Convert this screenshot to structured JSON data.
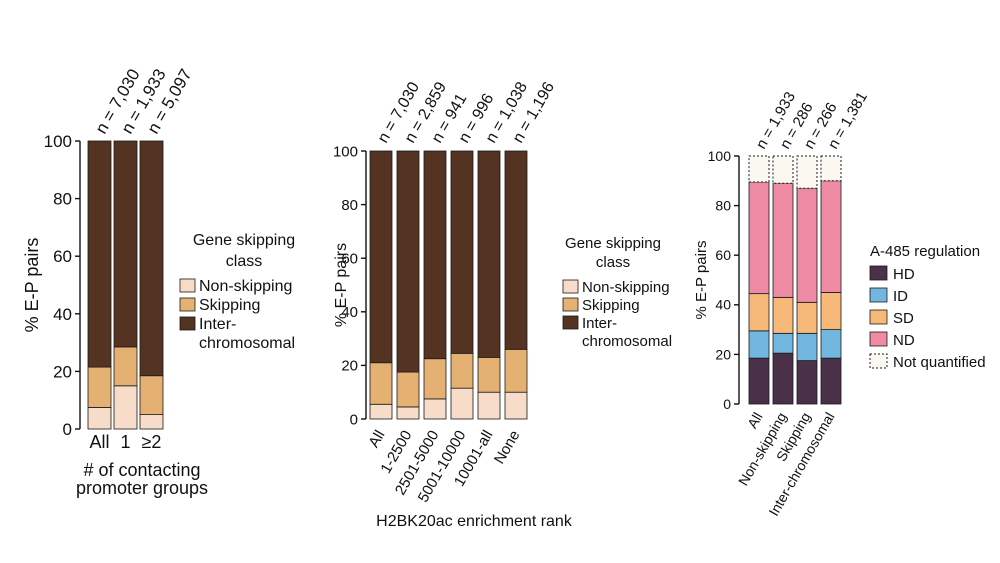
{
  "colors": {
    "non_skipping": "#f7ddc9",
    "skipping": "#e4b172",
    "inter": "#553322",
    "HD": "#4b3049",
    "ID": "#71b7e0",
    "SD": "#f6b97a",
    "ND": "#ee8aa3",
    "not_quantified": "#fbf8f1"
  },
  "chart_data": [
    {
      "type": "bar",
      "stacked": true,
      "ylabel": "% E-P pairs",
      "xlabel": "# of contacting promoter groups",
      "ylim": [
        0,
        100
      ],
      "yticks": [
        "0",
        "20",
        "40",
        "60",
        "80",
        "100"
      ],
      "categories": [
        "All",
        "1",
        "≥2"
      ],
      "n_labels": [
        "n = 7,030",
        "n = 1,933",
        "n = 5,097"
      ],
      "legend_title": "Gene skipping class",
      "series": [
        {
          "name": "Non-skipping",
          "color_key": "non_skipping",
          "values": [
            7.5,
            15,
            5
          ]
        },
        {
          "name": "Skipping",
          "color_key": "skipping",
          "values": [
            14,
            13.5,
            13.5
          ]
        },
        {
          "name": "Inter-chromosomal",
          "color_key": "inter",
          "values": [
            78.5,
            71.5,
            81.5
          ]
        }
      ],
      "legend_labels": [
        "Non-skipping",
        "Skipping",
        "Inter-",
        "chromosomal"
      ]
    },
    {
      "type": "bar",
      "stacked": true,
      "ylabel": "% E-P pairs",
      "xlabel": "H2BK20ac enrichment rank",
      "ylim": [
        0,
        100
      ],
      "yticks": [
        "0",
        "20",
        "40",
        "60",
        "80",
        "100"
      ],
      "categories": [
        "All",
        "1-2500",
        "2501-5000",
        "5001-10000",
        "10001-all",
        "None"
      ],
      "n_labels": [
        "n = 7,030",
        "n = 2,859",
        "n = 941",
        "n = 996",
        "n = 1,038",
        "n = 1,196"
      ],
      "legend_title": "Gene skipping class",
      "series": [
        {
          "name": "Non-skipping",
          "color_key": "non_skipping",
          "values": [
            5.5,
            4.5,
            7.5,
            11.5,
            10,
            10
          ]
        },
        {
          "name": "Skipping",
          "color_key": "skipping",
          "values": [
            15.5,
            13,
            15,
            13,
            13,
            16
          ]
        },
        {
          "name": "Inter-chromosomal",
          "color_key": "inter",
          "values": [
            79,
            82.5,
            77.5,
            75.5,
            77,
            74
          ]
        }
      ],
      "legend_labels": [
        "Non-skipping",
        "Skipping",
        "Inter-",
        "chromosomal"
      ]
    },
    {
      "type": "bar",
      "stacked": true,
      "ylabel": "% E-P pairs",
      "xlabel": "",
      "ylim": [
        0,
        100
      ],
      "yticks": [
        "0",
        "20",
        "40",
        "60",
        "80",
        "100"
      ],
      "categories": [
        "All",
        "Non-skipping",
        "Skipping",
        "Inter-chromosomal"
      ],
      "n_labels": [
        "n = 1,933",
        "n = 286",
        "n = 266",
        "n = 1,381"
      ],
      "legend_title": "A-485 regulation",
      "series": [
        {
          "name": "HD",
          "color_key": "HD",
          "values": [
            18.5,
            20.5,
            17.5,
            18.5
          ]
        },
        {
          "name": "ID",
          "color_key": "ID",
          "values": [
            11,
            8,
            11,
            11.5
          ]
        },
        {
          "name": "SD",
          "color_key": "SD",
          "values": [
            15,
            14.5,
            12.5,
            15
          ]
        },
        {
          "name": "ND",
          "color_key": "ND",
          "values": [
            45,
            46,
            46,
            45
          ]
        },
        {
          "name": "Not quantified",
          "color_key": "not_quantified",
          "values": [
            10.5,
            11,
            13,
            10
          ]
        }
      ],
      "legend_labels": [
        "HD",
        "ID",
        "SD",
        "ND",
        "Not quantified"
      ]
    }
  ]
}
